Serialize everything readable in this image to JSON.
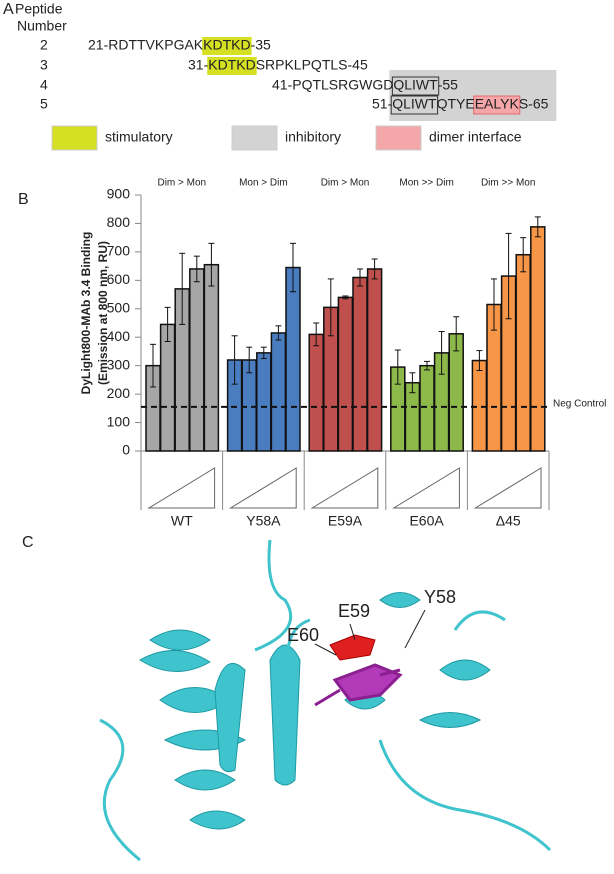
{
  "panel_a": {
    "label": "A",
    "header": [
      "Peptide",
      "Number"
    ],
    "rows": [
      {
        "number": "2",
        "segments": [
          {
            "text": "21-RDTTVKPGAK"
          },
          {
            "text": "KDTKD",
            "fill": "#d4e021"
          },
          {
            "text": "-35"
          }
        ]
      },
      {
        "number": "3",
        "segments": [
          {
            "text": "31-"
          },
          {
            "text": "KDTKD",
            "fill": "#d4e021"
          },
          {
            "text": "SRPKLPQTLS-45"
          }
        ]
      },
      {
        "number": "4",
        "segments": [
          {
            "text": "41-PQTLSRGWGD"
          },
          {
            "text": "QLIWT",
            "box": "#333333"
          },
          {
            "text": "-55"
          }
        ]
      },
      {
        "number": "5",
        "segments": [
          {
            "text": "51-"
          },
          {
            "text": "QLIWT",
            "box": "#333333"
          },
          {
            "text": "QTYE"
          },
          {
            "text": "EALYK",
            "fill": "#f4a6a8",
            "box": "#e06b70"
          },
          {
            "text": "S-65"
          }
        ]
      }
    ],
    "shade": {
      "rows": [
        2,
        3
      ],
      "color": "#d3d3d3"
    },
    "legend": [
      {
        "label": "stimulatory",
        "color": "#d4e021"
      },
      {
        "label": "inhibitory",
        "color": "#d3d3d3"
      },
      {
        "label": "dimer interface",
        "color": "#f4a6a8"
      }
    ]
  },
  "chart_data": {
    "type": "bar",
    "panel_label": "B",
    "ylabel": [
      "DyLight800-MAb 3.4 Binding",
      "(Emission at 800 nm, RU)"
    ],
    "ylim": [
      0,
      900
    ],
    "yticks": [
      0,
      100,
      200,
      300,
      400,
      500,
      600,
      700,
      800,
      900
    ],
    "group_annotations": [
      "Dim > Mon",
      "Mon > Dim",
      "Dim > Mon",
      "Mon >> Dim",
      "Dim >> Mon"
    ],
    "series": [
      {
        "name": "WT",
        "color": "#a6a6a6",
        "values": [
          300,
          445,
          570,
          640,
          655
        ],
        "errors": [
          75,
          60,
          125,
          45,
          75
        ]
      },
      {
        "name": "Y58A",
        "color": "#4a7cc0",
        "values": [
          320,
          320,
          345,
          415,
          645
        ],
        "errors": [
          85,
          45,
          20,
          25,
          85
        ]
      },
      {
        "name": "E59A",
        "color": "#c0504d",
        "values": [
          410,
          505,
          540,
          610,
          640
        ],
        "errors": [
          40,
          100,
          5,
          30,
          35
        ]
      },
      {
        "name": "E60A",
        "color": "#8db84a",
        "values": [
          295,
          240,
          300,
          345,
          412
        ],
        "errors": [
          60,
          35,
          15,
          75,
          60
        ]
      },
      {
        "name": "Δ45",
        "color": "#f79646",
        "values": [
          318,
          515,
          615,
          690,
          788
        ],
        "errors": [
          35,
          90,
          150,
          60,
          35
        ]
      }
    ],
    "reference_line": {
      "value": 155,
      "label": "Neg Control"
    }
  },
  "panel_c": {
    "label": "C",
    "labels": [
      "E59",
      "Y58",
      "E60"
    ]
  }
}
